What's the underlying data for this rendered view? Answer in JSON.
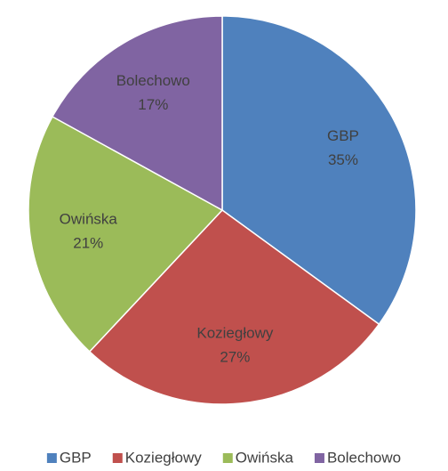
{
  "chart_data": {
    "type": "pie",
    "categories": [
      "GBP",
      "Koziegłowy",
      "Owińska",
      "Bolechowo"
    ],
    "values": [
      35,
      27,
      21,
      17
    ],
    "value_labels": [
      "35%",
      "27%",
      "21%",
      "17%"
    ],
    "colors": [
      "#4f81bd",
      "#c0504d",
      "#9bbb59",
      "#8064a2"
    ],
    "legend": "bottom"
  }
}
